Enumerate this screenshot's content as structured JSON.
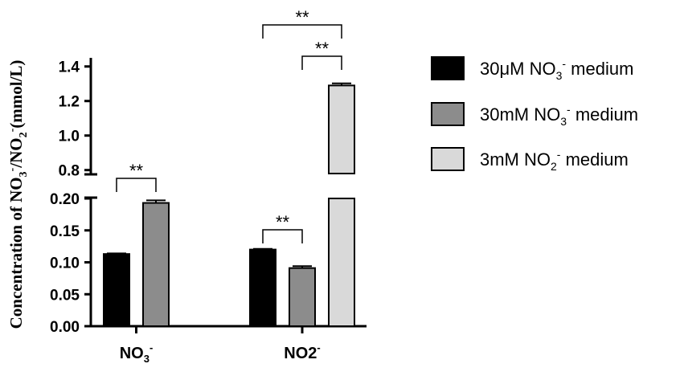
{
  "colors": {
    "series_black": "#000000",
    "series_dark_gray": "#8c8c8c",
    "series_light_gray": "#d9d9d9",
    "axis": "#000000"
  },
  "chart_data": {
    "type": "bar",
    "ylabel": "Concentration of NO3-/NO2-(mmol/L)",
    "ylabel_parts": {
      "prefix": "Concentration of NO",
      "sub1": "3",
      "sup1": "-",
      "mid": "/NO",
      "sub2": "2",
      "sup2": "-",
      "suffix": "(mmol/L)"
    },
    "y_axis": {
      "broken": true,
      "lower_segment": {
        "range": [
          0,
          0.2
        ],
        "ticks": [
          "0.00",
          "0.05",
          "0.10",
          "0.15",
          "0.20"
        ]
      },
      "upper_segment": {
        "range": [
          0.78,
          1.45
        ],
        "ticks": [
          "0.8",
          "1.0",
          "1.2",
          "1.4"
        ]
      }
    },
    "categories": [
      {
        "label": "NO3-",
        "base": "NO",
        "sub": "3",
        "sup": "-"
      },
      {
        "label": "NO2-",
        "base": "NO2",
        "sub": "",
        "sup": "-"
      }
    ],
    "series": [
      {
        "name": "30μM NO3- medium",
        "legend": {
          "base": "30μM NO",
          "sub": "3",
          "sup": "-",
          "suffix": " medium"
        },
        "color": "#000000",
        "values": [
          0.113,
          0.12
        ],
        "errors": [
          0.001,
          0.001
        ]
      },
      {
        "name": "30mM NO3- medium",
        "legend": {
          "base": "30mM NO",
          "sub": "3",
          "sup": "-",
          "suffix": " medium"
        },
        "color": "#8c8c8c",
        "values": [
          0.193,
          0.091
        ],
        "errors": [
          0.004,
          0.003
        ]
      },
      {
        "name": "3mM NO2- medium",
        "legend": {
          "base": "3mM NO",
          "sub": "2",
          "sup": "-",
          "suffix": " medium"
        },
        "color": "#d9d9d9",
        "values": [
          null,
          1.29
        ],
        "errors": [
          null,
          0.012
        ]
      }
    ],
    "annotations": [
      {
        "text": "**",
        "category": 0,
        "from_series": 0,
        "to_series": 1
      },
      {
        "text": "**",
        "category": 1,
        "from_series": 0,
        "to_series": 1
      },
      {
        "text": "**",
        "category": 1,
        "from_series": 1,
        "to_series": 2
      },
      {
        "text": "**",
        "category": 1,
        "from_series": 0,
        "to_series": 2
      }
    ],
    "legend_position": "right",
    "grid": false
  }
}
